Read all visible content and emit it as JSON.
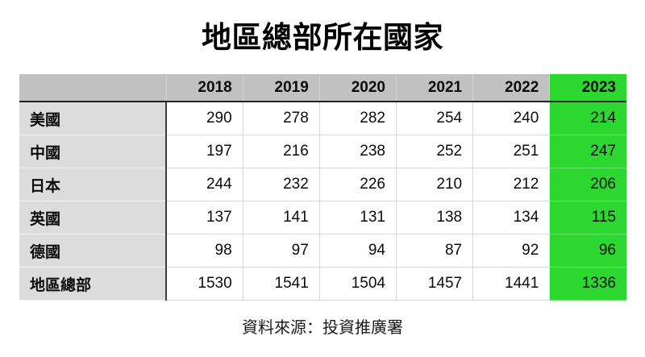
{
  "title": "地區總部所在國家",
  "colors": {
    "highlight_green": "#2CD72F",
    "header_gray": "#C1C1C1",
    "label_gray": "#DCDCDC",
    "header_underline": "#222222"
  },
  "chart_data": {
    "type": "table",
    "title": "地區總部所在國家",
    "columns": [
      "2018",
      "2019",
      "2020",
      "2021",
      "2022",
      "2023"
    ],
    "highlighted_column": "2023",
    "rows": [
      {
        "label": "美國",
        "values": [
          290,
          278,
          282,
          254,
          240,
          214
        ]
      },
      {
        "label": "中國",
        "values": [
          197,
          216,
          238,
          252,
          251,
          247
        ]
      },
      {
        "label": "日本",
        "values": [
          244,
          232,
          226,
          210,
          212,
          206
        ]
      },
      {
        "label": "英國",
        "values": [
          137,
          141,
          131,
          138,
          134,
          115
        ]
      },
      {
        "label": "德國",
        "values": [
          98,
          97,
          94,
          87,
          92,
          96
        ]
      },
      {
        "label": "地區總部",
        "values": [
          1530,
          1541,
          1504,
          1457,
          1441,
          1336
        ]
      }
    ],
    "source": "資料來源：投資推廣署"
  }
}
